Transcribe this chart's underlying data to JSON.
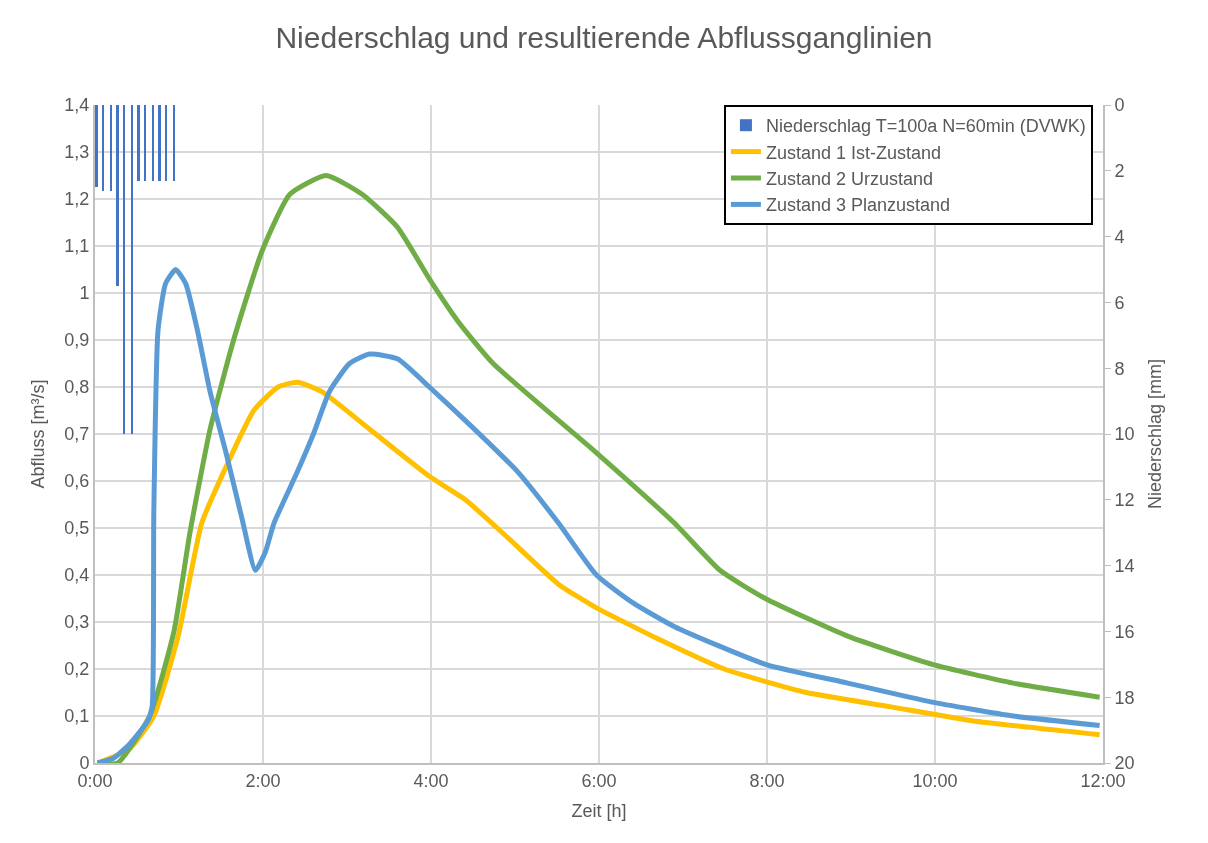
{
  "chart_data": {
    "type": "line",
    "title": "Niederschlag und resultierende Abflussganglinien",
    "xlabel": "Zeit [h]",
    "ylabel": "Abfluss [m³/s]",
    "y2label": "Niederschlag [mm]",
    "xlim": [
      0,
      12
    ],
    "xticks": [
      {
        "value": 0,
        "label": "0:00"
      },
      {
        "value": 2,
        "label": "2:00"
      },
      {
        "value": 4,
        "label": "4:00"
      },
      {
        "value": 6,
        "label": "6:00"
      },
      {
        "value": 8,
        "label": "8:00"
      },
      {
        "value": 10,
        "label": "10:00"
      },
      {
        "value": 12,
        "label": "12:00"
      }
    ],
    "ylim": [
      0,
      1.4
    ],
    "yticks": [
      0,
      {
        "value": 0.1,
        "label": "0,1"
      },
      {
        "value": 0.2,
        "label": "0,2"
      },
      {
        "value": 0.3,
        "label": "0,3"
      },
      {
        "value": 0.4,
        "label": "0,4"
      },
      {
        "value": 0.5,
        "label": "0,5"
      },
      {
        "value": 0.6,
        "label": "0,6"
      },
      {
        "value": 0.7,
        "label": "0,7"
      },
      {
        "value": 0.8,
        "label": "0,8"
      },
      {
        "value": 0.9,
        "label": "0,9"
      },
      1,
      {
        "value": 1.1,
        "label": "1,1"
      },
      {
        "value": 1.2,
        "label": "1,2"
      },
      {
        "value": 1.3,
        "label": "1,3"
      },
      {
        "value": 1.4,
        "label": "1,4"
      }
    ],
    "y2lim": [
      20,
      0
    ],
    "y2ticks": [
      0,
      2,
      4,
      6,
      8,
      10,
      12,
      14,
      16,
      18,
      20
    ],
    "grid": true,
    "legend": "top right",
    "marker": "none",
    "line_style": "solid",
    "series": [
      {
        "name": "Niederschlag T=100a N=60min (DVWK)",
        "type": "bar",
        "axis": "y2",
        "color": "#4472c4",
        "x": [
          0.02,
          0.1,
          0.19,
          0.27,
          0.35,
          0.44,
          0.52,
          0.6,
          0.69,
          0.77,
          0.85,
          0.94
        ],
        "values": [
          2.5,
          2.6,
          2.6,
          5.5,
          10,
          10,
          2.3,
          2.3,
          2.3,
          2.3,
          2.3,
          2.3
        ]
      },
      {
        "name": "Zustand 1 Ist-Zustand",
        "color": "#ffc000",
        "x": [
          0.03,
          0.41,
          0.7,
          0.99,
          1.27,
          1.56,
          1.89,
          2.18,
          2.41,
          2.7,
          3.27,
          3.98,
          4.41,
          4.91,
          5.52,
          5.97,
          6.75,
          7.49,
          8.47,
          9.46,
          10.44,
          11.96
        ],
        "values": [
          0,
          0.03,
          0.1,
          0.27,
          0.51,
          0.63,
          0.75,
          0.8,
          0.81,
          0.79,
          0.71,
          0.61,
          0.56,
          0.48,
          0.38,
          0.33,
          0.26,
          0.2,
          0.15,
          0.12,
          0.09,
          0.06
        ]
      },
      {
        "name": "Zustand 2 Urzustand",
        "color": "#70ad47",
        "x": [
          0.03,
          0.27,
          0.65,
          0.94,
          1.13,
          1.37,
          1.65,
          1.99,
          2.32,
          2.75,
          3.18,
          3.6,
          3.98,
          4.32,
          4.74,
          5.97,
          6.9,
          7.44,
          7.98,
          8.96,
          9.97,
          10.93,
          11.96
        ],
        "values": [
          0,
          0,
          0.1,
          0.28,
          0.49,
          0.71,
          0.9,
          1.09,
          1.21,
          1.25,
          1.21,
          1.14,
          1.03,
          0.94,
          0.85,
          0.66,
          0.51,
          0.41,
          0.35,
          0.27,
          0.21,
          0.17,
          0.14
        ]
      },
      {
        "name": "Zustand 3 Planzustand",
        "color": "#5b9bd5",
        "x": [
          0.03,
          0.22,
          0.41,
          0.63,
          0.68,
          0.7,
          0.75,
          0.84,
          0.96,
          1.08,
          1.22,
          1.37,
          1.56,
          1.75,
          1.91,
          2.03,
          2.13,
          2.41,
          2.6,
          2.79,
          3.03,
          3.27,
          3.6,
          3.98,
          4.46,
          5.03,
          5.52,
          5.97,
          6.41,
          6.9,
          7.98,
          8.96,
          9.95,
          10.93,
          11.96
        ],
        "values": [
          0,
          0.01,
          0.04,
          0.09,
          0.12,
          0.53,
          0.92,
          1.02,
          1.05,
          1.02,
          0.92,
          0.79,
          0.66,
          0.52,
          0.41,
          0.45,
          0.51,
          0.62,
          0.7,
          0.79,
          0.85,
          0.87,
          0.86,
          0.8,
          0.72,
          0.62,
          0.51,
          0.4,
          0.34,
          0.29,
          0.21,
          0.17,
          0.13,
          0.1,
          0.08
        ]
      }
    ]
  }
}
